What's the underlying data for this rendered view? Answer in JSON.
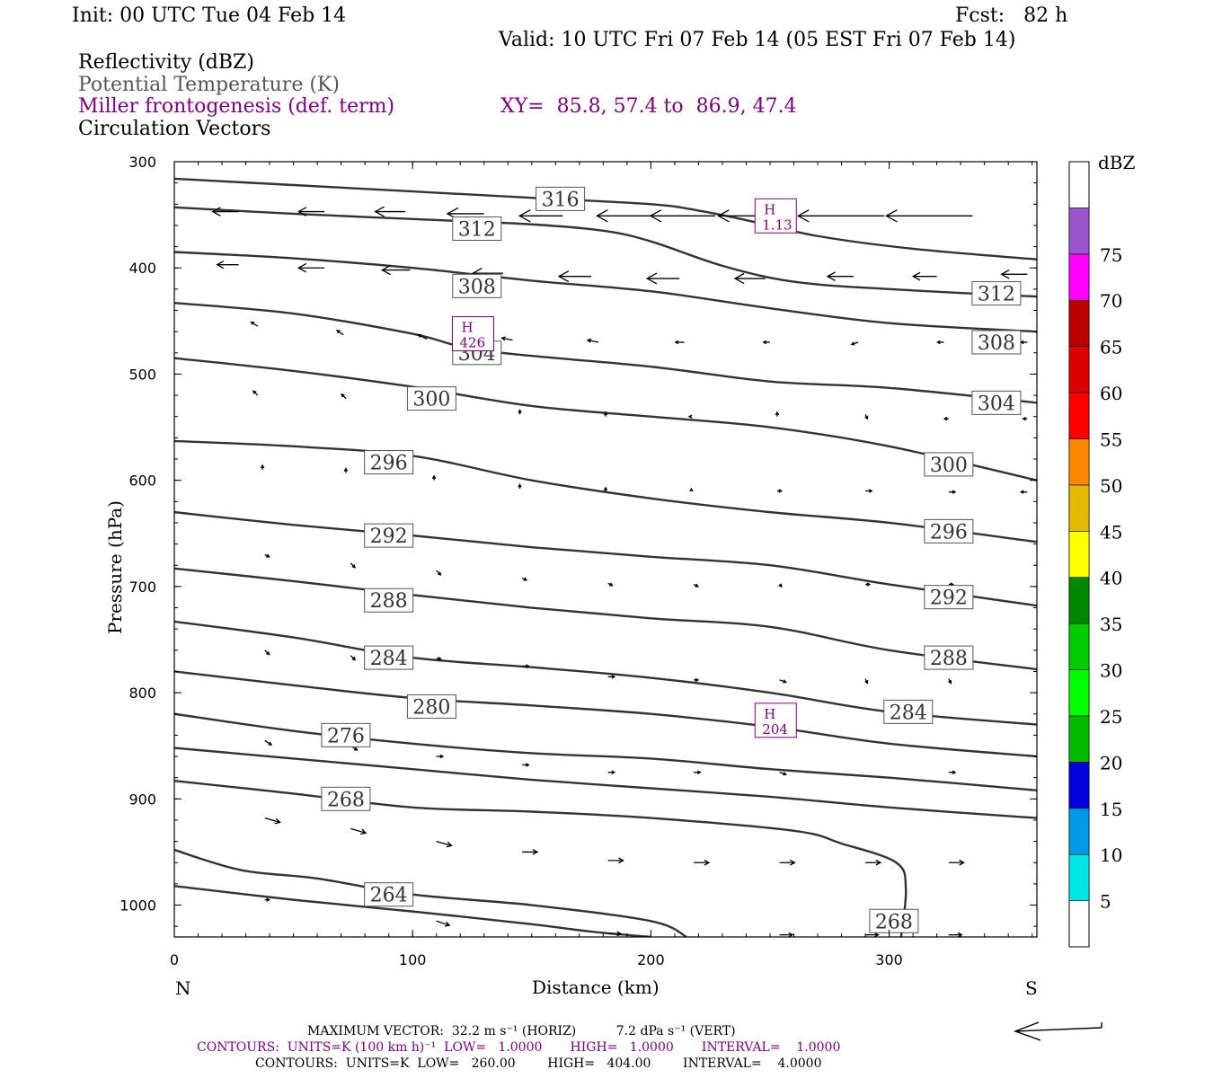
{
  "header": {
    "init": "Init: 00 UTC Tue 04 Feb 14",
    "fcst": "Fcst:   82 h",
    "valid": "Valid: 10 UTC Fri 07 Feb 14 (05 EST Fri 07 Feb 14)",
    "field1": "Reflectivity (dBZ)",
    "field2": "Potential Temperature (K)",
    "field3": "Miller frontogenesis (def. term)",
    "xy": "XY=  85.8, 57.4 to  86.9, 47.4",
    "field4": "Circulation Vectors"
  },
  "colors": {
    "contour": "#333333",
    "fronto": "#800080"
  },
  "chart_data": {
    "type": "line",
    "xlabel": "Distance (km)",
    "ylabel": "Pressure (hPa)",
    "xlim": [
      0,
      362
    ],
    "ylim": [
      1030,
      300
    ],
    "x_ticks": [
      0,
      100,
      200,
      300
    ],
    "y_ticks": [
      300,
      400,
      500,
      600,
      700,
      800,
      900,
      1000
    ],
    "x_end_labels": {
      "left": "N",
      "right": "S"
    },
    "grid": false,
    "theta_contours": [
      {
        "level": 316,
        "points": [
          [
            0,
            316
          ],
          [
            50,
            322
          ],
          [
            100,
            328
          ],
          [
            150,
            334
          ],
          [
            200,
            340
          ],
          [
            220,
            346
          ],
          [
            240,
            355
          ],
          [
            270,
            370
          ],
          [
            310,
            382
          ],
          [
            362,
            392
          ]
        ]
      },
      {
        "level": 312,
        "points": [
          [
            0,
            343
          ],
          [
            50,
            349
          ],
          [
            100,
            354
          ],
          [
            150,
            359
          ],
          [
            180,
            365
          ],
          [
            200,
            375
          ],
          [
            230,
            398
          ],
          [
            260,
            413
          ],
          [
            300,
            420
          ],
          [
            362,
            427
          ]
        ]
      },
      {
        "level": 308,
        "points": [
          [
            0,
            385
          ],
          [
            50,
            391
          ],
          [
            100,
            400
          ],
          [
            150,
            412
          ],
          [
            200,
            422
          ],
          [
            250,
            438
          ],
          [
            300,
            452
          ],
          [
            362,
            460
          ]
        ]
      },
      {
        "level": 304,
        "points": [
          [
            0,
            433
          ],
          [
            50,
            443
          ],
          [
            100,
            462
          ],
          [
            130,
            478
          ],
          [
            200,
            493
          ],
          [
            250,
            507
          ],
          [
            300,
            513
          ],
          [
            362,
            527
          ]
        ]
      },
      {
        "level": 300,
        "points": [
          [
            0,
            485
          ],
          [
            50,
            497
          ],
          [
            100,
            512
          ],
          [
            150,
            530
          ],
          [
            200,
            540
          ],
          [
            250,
            550
          ],
          [
            300,
            568
          ],
          [
            362,
            600
          ]
        ]
      },
      {
        "level": 296,
        "points": [
          [
            0,
            563
          ],
          [
            50,
            568
          ],
          [
            100,
            577
          ],
          [
            150,
            600
          ],
          [
            200,
            617
          ],
          [
            250,
            630
          ],
          [
            300,
            640
          ],
          [
            362,
            658
          ]
        ]
      },
      {
        "level": 292,
        "points": [
          [
            0,
            630
          ],
          [
            50,
            642
          ],
          [
            100,
            652
          ],
          [
            150,
            663
          ],
          [
            200,
            672
          ],
          [
            250,
            680
          ],
          [
            300,
            698
          ],
          [
            362,
            718
          ]
        ]
      },
      {
        "level": 288,
        "points": [
          [
            0,
            683
          ],
          [
            50,
            695
          ],
          [
            100,
            708
          ],
          [
            150,
            720
          ],
          [
            200,
            730
          ],
          [
            250,
            738
          ],
          [
            300,
            760
          ],
          [
            362,
            778
          ]
        ]
      },
      {
        "level": 284,
        "points": [
          [
            0,
            733
          ],
          [
            50,
            748
          ],
          [
            100,
            767
          ],
          [
            150,
            776
          ],
          [
            200,
            786
          ],
          [
            250,
            800
          ],
          [
            300,
            818
          ],
          [
            362,
            830
          ]
        ]
      },
      {
        "level": 280,
        "points": [
          [
            0,
            780
          ],
          [
            50,
            793
          ],
          [
            100,
            805
          ],
          [
            150,
            812
          ],
          [
            200,
            820
          ],
          [
            250,
            832
          ],
          [
            300,
            848
          ],
          [
            362,
            860
          ]
        ]
      },
      {
        "level": 276,
        "points": [
          [
            0,
            820
          ],
          [
            50,
            836
          ],
          [
            100,
            848
          ],
          [
            150,
            857
          ],
          [
            200,
            862
          ],
          [
            250,
            872
          ],
          [
            300,
            880
          ],
          [
            362,
            892
          ]
        ]
      },
      {
        "level": 272,
        "points": [
          [
            0,
            852
          ],
          [
            50,
            862
          ],
          [
            100,
            872
          ],
          [
            150,
            882
          ],
          [
            200,
            890
          ],
          [
            250,
            898
          ],
          [
            300,
            908
          ],
          [
            362,
            918
          ]
        ]
      },
      {
        "level": 268,
        "points": [
          [
            0,
            883
          ],
          [
            50,
            895
          ],
          [
            100,
            908
          ],
          [
            150,
            912
          ],
          [
            200,
            918
          ],
          [
            260,
            930
          ],
          [
            280,
            942
          ],
          [
            303,
            960
          ],
          [
            307,
            985
          ],
          [
            305,
            1030
          ]
        ]
      },
      {
        "level": 264,
        "points": [
          [
            0,
            948
          ],
          [
            28,
            967
          ],
          [
            60,
            975
          ],
          [
            100,
            990
          ],
          [
            150,
            1000
          ],
          [
            200,
            1015
          ],
          [
            215,
            1030
          ]
        ]
      },
      {
        "level": 260,
        "points": [
          [
            0,
            982
          ],
          [
            50,
            995
          ],
          [
            100,
            1006
          ],
          [
            150,
            1018
          ],
          [
            175,
            1025
          ],
          [
            200,
            1030
          ]
        ]
      }
    ],
    "theta_labels": [
      {
        "text": "316",
        "x": 162,
        "p": 335
      },
      {
        "text": "312",
        "x": 127,
        "p": 363
      },
      {
        "text": "312",
        "x": 345,
        "p": 424
      },
      {
        "text": "308",
        "x": 127,
        "p": 417
      },
      {
        "text": "308",
        "x": 345,
        "p": 470
      },
      {
        "text": "304",
        "x": 127,
        "p": 480
      },
      {
        "text": "304",
        "x": 345,
        "p": 527
      },
      {
        "text": "300",
        "x": 108,
        "p": 523
      },
      {
        "text": "300",
        "x": 325,
        "p": 585
      },
      {
        "text": "296",
        "x": 90,
        "p": 583
      },
      {
        "text": "296",
        "x": 325,
        "p": 648
      },
      {
        "text": "292",
        "x": 90,
        "p": 652
      },
      {
        "text": "292",
        "x": 325,
        "p": 710
      },
      {
        "text": "288",
        "x": 90,
        "p": 713
      },
      {
        "text": "288",
        "x": 325,
        "p": 767
      },
      {
        "text": "284",
        "x": 90,
        "p": 767
      },
      {
        "text": "284",
        "x": 308,
        "p": 818
      },
      {
        "text": "280",
        "x": 108,
        "p": 813
      },
      {
        "text": "276",
        "x": 72,
        "p": 840
      },
      {
        "text": "268",
        "x": 72,
        "p": 900
      },
      {
        "text": "264",
        "x": 90,
        "p": 990
      },
      {
        "text": "268",
        "x": 302,
        "p": 1015
      }
    ],
    "fronto_highs": [
      {
        "label": "H",
        "value": "1.13",
        "x": 252,
        "p": 351
      },
      {
        "label": "H",
        "value": "426",
        "x": 125,
        "p": 462
      },
      {
        "label": "H",
        "value": "204",
        "x": 252,
        "p": 826
      }
    ],
    "vectors": [
      [
        27,
        347,
        -12,
        0
      ],
      [
        63,
        347,
        -12,
        0
      ],
      [
        97,
        347,
        -14,
        0
      ],
      [
        130,
        349,
        -17,
        0
      ],
      [
        163,
        351,
        -20,
        0
      ],
      [
        200,
        351,
        -25,
        0
      ],
      [
        227,
        351,
        -30,
        0
      ],
      [
        260,
        351,
        -35,
        0
      ],
      [
        298,
        351,
        -40,
        0
      ],
      [
        335,
        351,
        -40,
        0
      ],
      [
        27,
        397,
        -10,
        0
      ],
      [
        63,
        400,
        -12,
        0
      ],
      [
        99,
        402,
        -13,
        0
      ],
      [
        138,
        405,
        -14,
        0
      ],
      [
        175,
        408,
        -15,
        0
      ],
      [
        212,
        410,
        -15,
        0
      ],
      [
        248,
        410,
        -14,
        0
      ],
      [
        285,
        408,
        -12,
        0
      ],
      [
        320,
        408,
        -11,
        0
      ],
      [
        358,
        406,
        -12,
        0
      ],
      [
        35,
        455,
        -3,
        -2
      ],
      [
        71,
        463,
        -3,
        -2
      ],
      [
        106,
        467,
        -4,
        -2
      ],
      [
        142,
        468,
        -5,
        -1
      ],
      [
        178,
        470,
        -5,
        -1
      ],
      [
        214,
        470,
        -4,
        0
      ],
      [
        250,
        470,
        -3,
        0
      ],
      [
        287,
        470,
        -3,
        1
      ],
      [
        323,
        470,
        -3,
        0
      ],
      [
        358,
        470,
        -3,
        0
      ],
      [
        35,
        520,
        -2,
        -2
      ],
      [
        72,
        523,
        -2,
        -2
      ],
      [
        108,
        530,
        -1,
        -2
      ],
      [
        145,
        538,
        0,
        -2
      ],
      [
        181,
        540,
        0,
        -2
      ],
      [
        217,
        540,
        -1,
        0
      ],
      [
        253,
        540,
        0,
        -2
      ],
      [
        290,
        538,
        1,
        2
      ],
      [
        325,
        542,
        -2,
        0
      ],
      [
        358,
        542,
        -2,
        0
      ],
      [
        37,
        590,
        0,
        -2
      ],
      [
        72,
        593,
        0,
        -2
      ],
      [
        109,
        600,
        0,
        -2
      ],
      [
        145,
        608,
        0,
        -2
      ],
      [
        181,
        611,
        0,
        -2
      ],
      [
        217,
        610,
        0,
        -1
      ],
      [
        253,
        610,
        2,
        0
      ],
      [
        290,
        610,
        3,
        0
      ],
      [
        325,
        611,
        3,
        0
      ],
      [
        358,
        611,
        -3,
        0
      ],
      [
        38,
        670,
        2,
        1
      ],
      [
        74,
        678,
        2,
        2
      ],
      [
        110,
        685,
        2,
        2
      ],
      [
        146,
        692,
        2,
        1
      ],
      [
        182,
        697,
        2,
        1
      ],
      [
        218,
        698,
        2,
        1
      ],
      [
        254,
        698,
        1,
        1
      ],
      [
        290,
        698,
        2,
        0
      ],
      [
        325,
        698,
        2,
        0
      ],
      [
        38,
        760,
        2,
        2
      ],
      [
        74,
        765,
        2,
        2
      ],
      [
        110,
        768,
        2,
        0
      ],
      [
        146,
        775,
        3,
        0
      ],
      [
        182,
        785,
        3,
        0
      ],
      [
        218,
        788,
        2,
        0
      ],
      [
        254,
        788,
        3,
        1
      ],
      [
        290,
        787,
        1,
        2
      ],
      [
        325,
        787,
        1,
        2
      ],
      [
        38,
        845,
        3,
        2
      ],
      [
        74,
        850,
        3,
        2
      ],
      [
        110,
        860,
        3,
        0
      ],
      [
        146,
        868,
        3,
        0
      ],
      [
        182,
        875,
        3,
        0
      ],
      [
        218,
        875,
        3,
        0
      ],
      [
        254,
        875,
        3,
        1
      ],
      [
        325,
        875,
        3,
        0
      ],
      [
        38,
        918,
        7,
        2
      ],
      [
        74,
        928,
        7,
        2
      ],
      [
        110,
        940,
        7,
        2
      ],
      [
        146,
        950,
        7,
        0
      ],
      [
        182,
        958,
        7,
        0
      ],
      [
        218,
        960,
        7,
        0
      ],
      [
        254,
        960,
        7,
        0
      ],
      [
        290,
        960,
        7,
        0
      ],
      [
        325,
        960,
        7,
        0
      ],
      [
        38,
        995,
        2,
        0
      ],
      [
        110,
        1015,
        6,
        2
      ],
      [
        182,
        1027,
        6,
        0
      ],
      [
        254,
        1028,
        6,
        0
      ],
      [
        290,
        1028,
        6,
        0
      ],
      [
        325,
        1028,
        6,
        0
      ]
    ],
    "colorbar": {
      "title": "dBZ",
      "ticks": [
        "5",
        "10",
        "15",
        "20",
        "25",
        "30",
        "35",
        "40",
        "45",
        "50",
        "55",
        "60",
        "65",
        "70",
        "75"
      ],
      "colors": [
        "#00e5e5",
        "#0099e5",
        "#0000dd",
        "#00bb00",
        "#00ff00",
        "#00cc00",
        "#008800",
        "#ffff00",
        "#e5bb00",
        "#ff8800",
        "#ff0000",
        "#dd0000",
        "#bb0000",
        "#ff00ff",
        "#9955cc"
      ]
    }
  },
  "footer": {
    "line1": "MAXIMUM VECTOR:  32.2 m s⁻¹ (HORIZ)          7.2 dPa s⁻¹ (VERT)",
    "line2": "CONTOURS:  UNITS=K (100 km h)⁻¹  LOW=   1.0000       HIGH=   1.0000       INTERVAL=    1.0000",
    "line3": "CONTOURS:  UNITS=K  LOW=   260.00        HIGH=   404.00        INTERVAL=    4.0000"
  }
}
